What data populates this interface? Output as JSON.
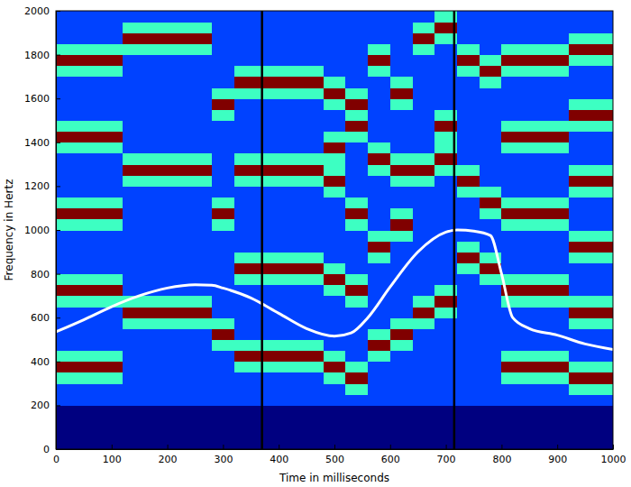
{
  "chart_data": {
    "type": "heatmap",
    "xlabel": "Time in milliseconds",
    "ylabel": "Frequency in Hertz",
    "xlim": [
      0,
      1000
    ],
    "ylim": [
      0,
      2000
    ],
    "xticks": [
      0,
      100,
      200,
      300,
      400,
      500,
      600,
      700,
      800,
      900,
      1000
    ],
    "yticks": [
      0,
      200,
      400,
      600,
      800,
      1000,
      1200,
      1400,
      1600,
      1800,
      2000
    ],
    "grid": false,
    "x_edges": [
      0,
      40,
      80,
      120,
      160,
      200,
      240,
      280,
      320,
      360,
      400,
      440,
      480,
      520,
      560,
      600,
      640,
      680,
      720,
      760,
      800,
      840,
      880,
      920,
      960,
      1000
    ],
    "y_edges": [
      0,
      50,
      100,
      150,
      200,
      250,
      300,
      350,
      400,
      450,
      500,
      550,
      600,
      650,
      700,
      750,
      800,
      850,
      900,
      950,
      1000,
      1050,
      1100,
      1150,
      1200,
      1250,
      1300,
      1350,
      1400,
      1450,
      1500,
      1550,
      1600,
      1650,
      1700,
      1750,
      1800,
      1850,
      1900,
      1950,
      2000
    ],
    "zlim": [
      0,
      4
    ],
    "cells": [
      [
        0,
        0,
        0,
        0,
        0,
        0,
        0,
        0,
        0,
        0,
        0,
        0,
        0,
        0,
        0,
        0,
        0,
        0,
        0,
        0,
        0,
        0,
        0,
        0,
        0
      ],
      [
        0,
        0,
        0,
        0,
        0,
        0,
        0,
        0,
        0,
        0,
        0,
        0,
        0,
        0,
        0,
        0,
        0,
        0,
        0,
        0,
        0,
        0,
        0,
        0,
        0
      ],
      [
        0,
        0,
        0,
        0,
        0,
        0,
        0,
        0,
        0,
        0,
        0,
        0,
        0,
        0,
        0,
        0,
        0,
        0,
        0,
        0,
        0,
        0,
        0,
        0,
        0
      ],
      [
        0,
        0,
        0,
        0,
        0,
        0,
        0,
        0,
        0,
        0,
        0,
        0,
        0,
        0,
        0,
        0,
        0,
        0,
        0,
        0,
        0,
        0,
        0,
        0,
        0
      ],
      [
        1,
        1,
        1,
        1,
        1,
        1,
        1,
        1,
        1,
        1,
        1,
        1,
        1,
        1,
        1,
        1,
        1,
        1,
        1,
        1,
        1,
        1,
        1,
        1,
        1
      ],
      [
        1,
        1,
        1,
        1,
        1,
        1,
        1,
        1,
        1,
        1,
        1,
        1,
        1,
        2,
        1,
        1,
        1,
        1,
        1,
        1,
        1,
        1,
        1,
        2,
        2
      ],
      [
        2,
        2,
        2,
        1,
        1,
        1,
        1,
        1,
        1,
        1,
        1,
        1,
        2,
        4,
        1,
        1,
        1,
        1,
        1,
        1,
        2,
        2,
        2,
        4,
        4
      ],
      [
        4,
        4,
        4,
        1,
        1,
        1,
        1,
        1,
        2,
        2,
        2,
        2,
        4,
        2,
        1,
        1,
        1,
        1,
        1,
        1,
        4,
        4,
        4,
        2,
        2
      ],
      [
        2,
        2,
        2,
        1,
        1,
        1,
        1,
        1,
        4,
        4,
        4,
        4,
        2,
        1,
        2,
        1,
        1,
        1,
        1,
        1,
        2,
        2,
        2,
        1,
        1
      ],
      [
        1,
        1,
        1,
        1,
        1,
        1,
        1,
        2,
        2,
        2,
        2,
        2,
        1,
        1,
        4,
        2,
        1,
        1,
        1,
        1,
        1,
        1,
        1,
        1,
        1
      ],
      [
        1,
        1,
        1,
        1,
        1,
        1,
        1,
        4,
        1,
        1,
        1,
        1,
        1,
        1,
        2,
        4,
        1,
        1,
        1,
        1,
        1,
        1,
        1,
        1,
        1
      ],
      [
        1,
        1,
        1,
        2,
        2,
        2,
        2,
        2,
        1,
        1,
        1,
        1,
        1,
        1,
        1,
        2,
        2,
        1,
        1,
        1,
        1,
        1,
        1,
        2,
        2
      ],
      [
        1,
        1,
        1,
        4,
        4,
        4,
        4,
        1,
        1,
        1,
        1,
        1,
        1,
        1,
        1,
        1,
        4,
        2,
        1,
        1,
        1,
        1,
        1,
        4,
        4
      ],
      [
        2,
        2,
        2,
        2,
        2,
        2,
        2,
        1,
        1,
        1,
        1,
        1,
        1,
        2,
        1,
        1,
        2,
        4,
        1,
        1,
        2,
        2,
        2,
        2,
        2
      ],
      [
        4,
        4,
        4,
        1,
        1,
        1,
        1,
        1,
        1,
        1,
        1,
        1,
        2,
        4,
        1,
        1,
        1,
        2,
        1,
        1,
        4,
        4,
        4,
        1,
        1
      ],
      [
        2,
        2,
        2,
        1,
        1,
        1,
        1,
        1,
        2,
        2,
        2,
        2,
        4,
        2,
        1,
        1,
        1,
        1,
        1,
        2,
        2,
        2,
        2,
        1,
        1
      ],
      [
        1,
        1,
        1,
        1,
        1,
        1,
        1,
        1,
        4,
        4,
        4,
        4,
        2,
        1,
        1,
        1,
        1,
        1,
        2,
        4,
        1,
        1,
        1,
        1,
        1
      ],
      [
        1,
        1,
        1,
        1,
        1,
        1,
        1,
        1,
        2,
        2,
        2,
        2,
        1,
        1,
        2,
        1,
        1,
        1,
        4,
        2,
        1,
        1,
        1,
        2,
        2
      ],
      [
        1,
        1,
        1,
        1,
        1,
        1,
        1,
        1,
        1,
        1,
        1,
        1,
        1,
        1,
        4,
        1,
        1,
        1,
        2,
        1,
        1,
        1,
        1,
        4,
        4
      ],
      [
        1,
        1,
        1,
        1,
        1,
        1,
        1,
        1,
        1,
        1,
        1,
        1,
        1,
        1,
        2,
        2,
        1,
        1,
        1,
        1,
        1,
        1,
        1,
        2,
        2
      ],
      [
        2,
        2,
        2,
        1,
        1,
        1,
        1,
        2,
        1,
        1,
        1,
        1,
        1,
        2,
        1,
        4,
        1,
        1,
        1,
        1,
        2,
        2,
        2,
        1,
        1
      ],
      [
        4,
        4,
        4,
        1,
        1,
        1,
        1,
        4,
        1,
        1,
        1,
        1,
        1,
        4,
        1,
        2,
        1,
        1,
        1,
        2,
        4,
        4,
        4,
        1,
        1
      ],
      [
        2,
        2,
        2,
        1,
        1,
        1,
        1,
        2,
        1,
        1,
        1,
        1,
        1,
        2,
        1,
        1,
        1,
        1,
        1,
        4,
        2,
        2,
        2,
        1,
        1
      ],
      [
        1,
        1,
        1,
        1,
        1,
        1,
        1,
        1,
        1,
        1,
        1,
        1,
        2,
        1,
        1,
        1,
        1,
        1,
        2,
        2,
        1,
        1,
        1,
        2,
        2
      ],
      [
        1,
        1,
        1,
        2,
        2,
        2,
        2,
        1,
        2,
        2,
        2,
        2,
        4,
        1,
        1,
        2,
        2,
        1,
        4,
        1,
        1,
        1,
        1,
        4,
        4
      ],
      [
        1,
        1,
        1,
        4,
        4,
        4,
        4,
        1,
        4,
        4,
        4,
        4,
        2,
        1,
        2,
        4,
        4,
        2,
        2,
        1,
        1,
        1,
        1,
        2,
        2
      ],
      [
        1,
        1,
        1,
        2,
        2,
        2,
        2,
        1,
        2,
        2,
        2,
        2,
        2,
        1,
        4,
        2,
        2,
        4,
        1,
        1,
        1,
        1,
        1,
        1,
        1
      ],
      [
        2,
        2,
        2,
        1,
        1,
        1,
        1,
        1,
        1,
        1,
        1,
        1,
        4,
        1,
        2,
        1,
        1,
        2,
        1,
        1,
        2,
        2,
        2,
        1,
        1
      ],
      [
        4,
        4,
        4,
        1,
        1,
        1,
        1,
        1,
        1,
        1,
        1,
        1,
        2,
        2,
        1,
        1,
        1,
        2,
        1,
        1,
        4,
        4,
        4,
        1,
        1
      ],
      [
        2,
        2,
        2,
        1,
        1,
        1,
        1,
        1,
        1,
        1,
        1,
        1,
        1,
        4,
        1,
        1,
        1,
        4,
        1,
        1,
        2,
        2,
        2,
        2,
        2
      ],
      [
        1,
        1,
        1,
        1,
        1,
        1,
        1,
        2,
        1,
        1,
        1,
        1,
        1,
        2,
        1,
        1,
        1,
        2,
        1,
        1,
        1,
        1,
        1,
        4,
        4
      ],
      [
        1,
        1,
        1,
        1,
        1,
        1,
        1,
        4,
        1,
        1,
        1,
        1,
        2,
        4,
        1,
        2,
        1,
        1,
        1,
        1,
        1,
        1,
        1,
        2,
        2
      ],
      [
        1,
        1,
        1,
        1,
        1,
        1,
        1,
        2,
        2,
        2,
        2,
        2,
        4,
        2,
        1,
        4,
        1,
        1,
        1,
        1,
        1,
        1,
        1,
        1,
        1
      ],
      [
        1,
        1,
        1,
        1,
        1,
        1,
        1,
        1,
        4,
        4,
        4,
        4,
        2,
        1,
        1,
        2,
        1,
        1,
        1,
        2,
        1,
        1,
        1,
        1,
        1
      ],
      [
        2,
        2,
        2,
        1,
        1,
        1,
        1,
        1,
        2,
        2,
        2,
        2,
        1,
        1,
        2,
        1,
        1,
        1,
        2,
        4,
        2,
        2,
        2,
        1,
        1
      ],
      [
        4,
        4,
        4,
        1,
        1,
        1,
        1,
        1,
        1,
        1,
        1,
        1,
        1,
        1,
        4,
        1,
        1,
        1,
        4,
        2,
        4,
        4,
        4,
        2,
        2
      ],
      [
        2,
        2,
        2,
        2,
        2,
        2,
        2,
        1,
        1,
        1,
        1,
        1,
        1,
        1,
        2,
        1,
        2,
        1,
        2,
        1,
        2,
        2,
        2,
        4,
        4
      ],
      [
        1,
        1,
        1,
        4,
        4,
        4,
        4,
        1,
        1,
        1,
        1,
        1,
        1,
        1,
        1,
        1,
        4,
        2,
        1,
        1,
        1,
        1,
        1,
        2,
        2
      ],
      [
        1,
        1,
        1,
        2,
        2,
        2,
        2,
        1,
        1,
        1,
        1,
        1,
        1,
        1,
        1,
        1,
        2,
        4,
        1,
        1,
        1,
        1,
        1,
        1,
        1
      ],
      [
        1,
        1,
        1,
        1,
        1,
        1,
        1,
        1,
        1,
        1,
        1,
        1,
        1,
        1,
        1,
        1,
        1,
        2,
        1,
        1,
        1,
        1,
        1,
        1,
        1
      ]
    ],
    "series": [
      {
        "type": "line",
        "color": "#ffffff",
        "x": [
          0,
          50,
          100,
          150,
          200,
          250,
          280,
          300,
          350,
          400,
          450,
          500,
          530,
          560,
          600,
          650,
          700,
          720,
          750,
          780,
          800,
          820,
          850,
          900,
          950,
          1000
        ],
        "values": [
          535,
          590,
          650,
          700,
          735,
          750,
          748,
          735,
          690,
          620,
          550,
          515,
          530,
          600,
          740,
          900,
          990,
          1000,
          995,
          975,
          800,
          600,
          550,
          520,
          480,
          455
        ]
      },
      {
        "type": "vline",
        "color": "#000000",
        "x": [
          370,
          715
        ]
      }
    ]
  }
}
